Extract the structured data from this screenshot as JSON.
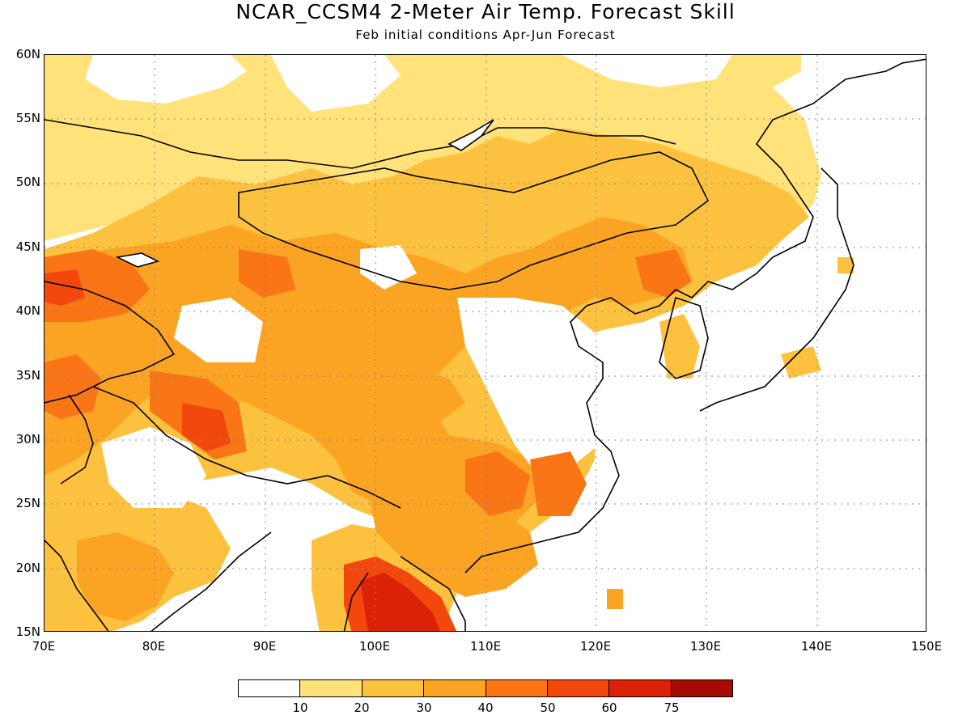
{
  "title": "NCAR_CCSM4 2-Meter Air Temp. Forecast Skill",
  "subtitle": "Feb initial conditions  Apr-Jun Forecast",
  "lat_labels": [
    "60N",
    "55N",
    "50N",
    "45N",
    "40N",
    "35N",
    "30N",
    "25N",
    "20N",
    "15N"
  ],
  "lon_labels": [
    "70E",
    "80E",
    "90E",
    "100E",
    "110E",
    "120E",
    "130E",
    "140E",
    "150E"
  ],
  "legend": {
    "colors": [
      "#ffffff",
      "#ffe27a",
      "#fcc23f",
      "#fba424",
      "#f97516",
      "#f2480e",
      "#db2208",
      "#a50b00"
    ],
    "labels": [
      "10",
      "20",
      "30",
      "40",
      "50",
      "60",
      "75"
    ]
  },
  "map": {
    "lon_range": [
      70,
      150
    ],
    "lat_range": [
      15,
      60
    ]
  }
}
